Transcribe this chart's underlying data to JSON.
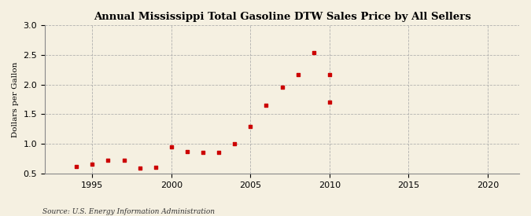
{
  "title": "Annual Mississippi Total Gasoline DTW Sales Price by All Sellers",
  "ylabel": "Dollars per Gallon",
  "source": "Source: U.S. Energy Information Administration",
  "background_color": "#f5f0e1",
  "marker_color": "#cc0000",
  "xlim": [
    1992,
    2022
  ],
  "ylim": [
    0.5,
    3.0
  ],
  "xticks": [
    1995,
    2000,
    2005,
    2010,
    2015,
    2020
  ],
  "yticks": [
    0.5,
    1.0,
    1.5,
    2.0,
    2.5,
    3.0
  ],
  "years": [
    1994,
    1995,
    1996,
    1997,
    1998,
    1999,
    2000,
    2001,
    2002,
    2003,
    2004,
    2005,
    2006,
    2007,
    2008,
    2009,
    2010
  ],
  "values": [
    0.62,
    0.66,
    0.73,
    0.73,
    0.59,
    0.6,
    0.95,
    0.87,
    0.86,
    0.86,
    1.0,
    1.3,
    1.65,
    1.95,
    2.17,
    2.53,
    1.71
  ]
}
